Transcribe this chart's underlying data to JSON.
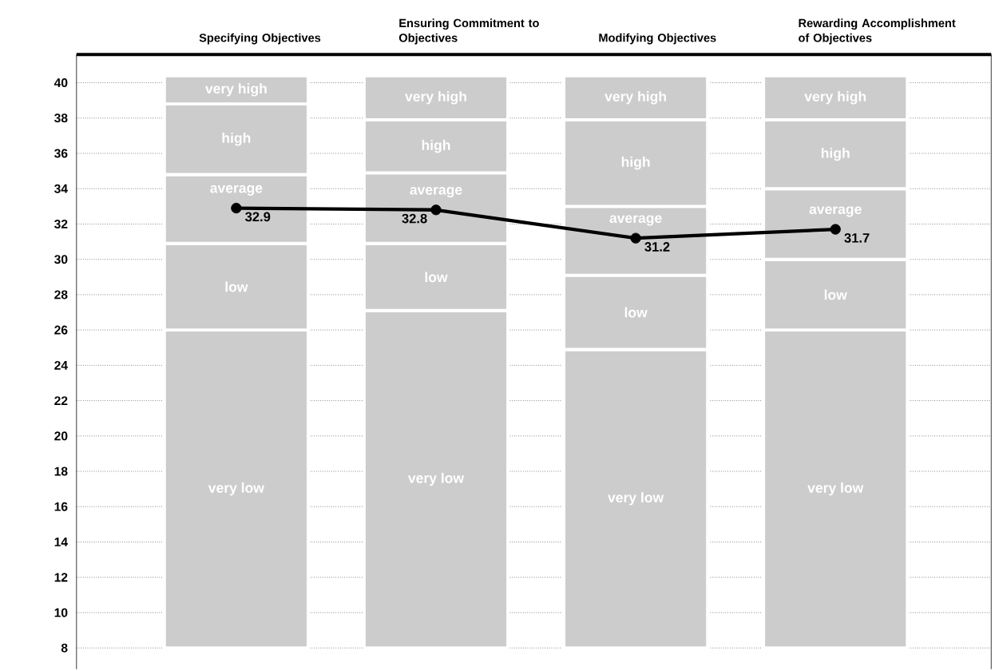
{
  "chart_data": {
    "type": "bar",
    "categories": [
      "Specifying Objectives",
      "Ensuring Commitment to Objectives",
      "Modifying Objectives",
      "Rewarding Accomplishment of Objectives"
    ],
    "series": [
      {
        "name": "very low",
        "color": "#cccccc",
        "base": [
          8,
          8,
          8,
          8
        ],
        "values": [
          18.0,
          19.1,
          16.9,
          18.0
        ]
      },
      {
        "name": "low",
        "color": "#cccccc",
        "base": [
          26.0,
          27.1,
          24.9,
          26.0
        ],
        "values": [
          4.9,
          3.8,
          4.2,
          4.0
        ]
      },
      {
        "name": "average",
        "color": "#cccccc",
        "base": [
          30.9,
          30.9,
          29.1,
          30.0
        ],
        "values": [
          3.9,
          4.0,
          3.9,
          4.0
        ]
      },
      {
        "name": "high",
        "color": "#cccccc",
        "base": [
          34.8,
          34.9,
          33.0,
          34.0
        ],
        "values": [
          4.0,
          3.0,
          4.9,
          3.9
        ]
      },
      {
        "name": "very high",
        "color": "#cccccc",
        "base": [
          38.8,
          37.9,
          37.9,
          37.9
        ],
        "values": [
          1.6,
          2.5,
          2.5,
          2.5
        ]
      },
      {
        "type": "line",
        "color": "#000000",
        "values": [
          32.9,
          32.8,
          31.2,
          31.7
        ],
        "value_labels": [
          "32.9",
          "32.8",
          "31.2",
          "31.7"
        ]
      }
    ],
    "marker": "circle",
    "grid": "y",
    "ylim": [
      6.8,
      41.6
    ],
    "yticks": [
      8,
      10,
      12,
      14,
      16,
      18,
      20,
      22,
      24,
      26,
      28,
      30,
      32,
      34,
      36,
      38,
      40
    ]
  }
}
